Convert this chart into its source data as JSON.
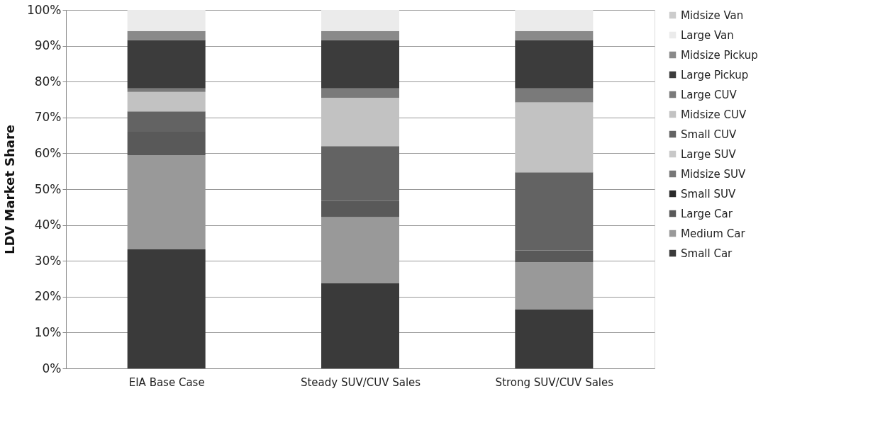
{
  "chart_data": {
    "type": "bar",
    "stacked": true,
    "ylabel": "LDV Market Share",
    "categories": [
      "EIA Base Case",
      "Steady SUV/CUV Sales",
      "Strong SUV/CUV Sales"
    ],
    "ylim": [
      0,
      100
    ],
    "yticks": [
      {
        "value": 0,
        "label": "0%"
      },
      {
        "value": 10,
        "label": "10%"
      },
      {
        "value": 20,
        "label": "20%"
      },
      {
        "value": 30,
        "label": "30%"
      },
      {
        "value": 40,
        "label": "40%"
      },
      {
        "value": 50,
        "label": "50%"
      },
      {
        "value": 60,
        "label": "60%"
      },
      {
        "value": 70,
        "label": "70%"
      },
      {
        "value": 80,
        "label": "80%"
      },
      {
        "value": 90,
        "label": "90%"
      },
      {
        "value": 100,
        "label": "100%"
      }
    ],
    "grid": "y",
    "legend": "right",
    "series": [
      {
        "name": "Small Car",
        "color": "#3a3a3a",
        "values": [
          33.2,
          23.7,
          16.4
        ]
      },
      {
        "name": "Medium Car",
        "color": "#999999",
        "values": [
          26.3,
          18.5,
          13.2
        ]
      },
      {
        "name": "Large Car",
        "color": "#595959",
        "values": [
          6.5,
          4.5,
          3.3
        ]
      },
      {
        "name": "Small SUV",
        "color": "#2a2a2a",
        "values": [
          0,
          0,
          0
        ]
      },
      {
        "name": "Midsize SUV",
        "color": "#777777",
        "values": [
          0,
          0,
          0
        ]
      },
      {
        "name": "Large SUV",
        "color": "#c8c8c8",
        "values": [
          0,
          0,
          0
        ]
      },
      {
        "name": "Small CUV",
        "color": "#636363",
        "values": [
          5.7,
          15.3,
          21.8
        ]
      },
      {
        "name": "Midsize CUV",
        "color": "#c2c2c2",
        "values": [
          5.4,
          13.5,
          19.5
        ]
      },
      {
        "name": "Large CUV",
        "color": "#7a7a7a",
        "values": [
          1.0,
          2.6,
          3.9
        ]
      },
      {
        "name": "Large Pickup",
        "color": "#3c3c3c",
        "values": [
          13.5,
          13.5,
          13.5
        ]
      },
      {
        "name": "Midsize Pickup",
        "color": "#8a8a8a",
        "values": [
          2.5,
          2.5,
          2.5
        ]
      },
      {
        "name": "Large Van",
        "color": "#ebebeb",
        "values": [
          5.9,
          5.9,
          5.9
        ]
      },
      {
        "name": "Midsize Van",
        "color": "#cccccc",
        "values": [
          0,
          0,
          0
        ]
      }
    ]
  }
}
